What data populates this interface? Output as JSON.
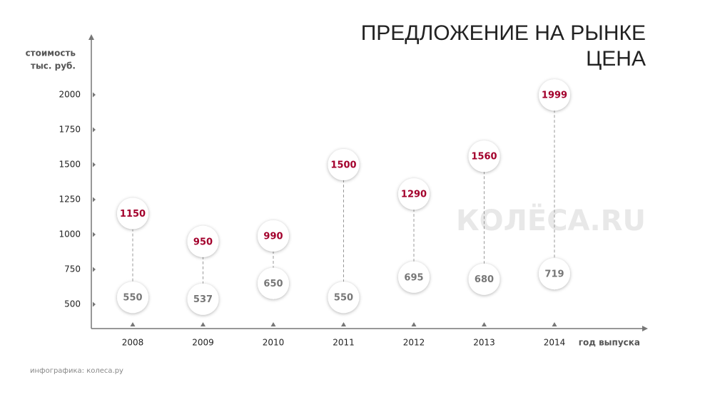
{
  "chart_data": {
    "type": "range",
    "title": [
      "ПРЕДЛОЖЕНИЕ НА РЫНКЕ",
      "ЦЕНА"
    ],
    "y_label": [
      "стоимость",
      "тыс. руб."
    ],
    "x_label": "год выпуска",
    "footer": "инфографика: колеса.ру",
    "watermark": "КОЛЁСА.RU",
    "categories": [
      "2008",
      "2009",
      "2010",
      "2011",
      "2012",
      "2013",
      "2014"
    ],
    "series": [
      {
        "color": "#a3002c",
        "values": [
          1150,
          950,
          990,
          1500,
          1290,
          1560,
          1999
        ]
      },
      {
        "color": "#777777",
        "values": [
          550,
          537,
          650,
          550,
          695,
          680,
          719
        ]
      }
    ],
    "ylim": [
      325,
      2400
    ],
    "yticks": [
      500,
      750,
      1000,
      1250,
      1500,
      1750,
      2000
    ]
  }
}
